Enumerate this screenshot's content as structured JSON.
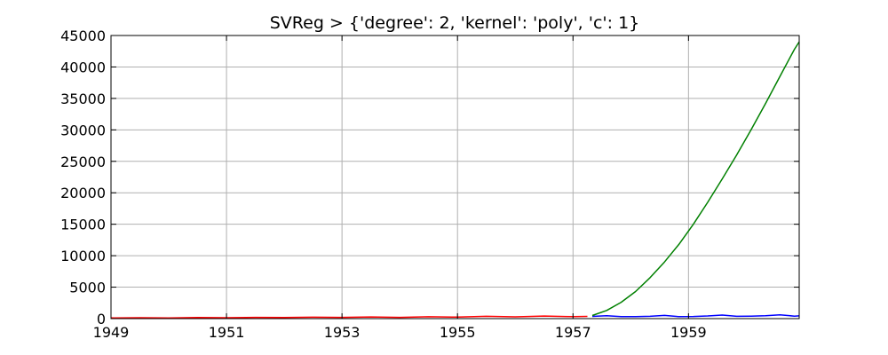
{
  "chart_data": {
    "type": "line",
    "title": "SVReg > {'degree': 2, 'kernel': 'poly', 'c': 1}",
    "xlabel": "",
    "ylabel": "",
    "xlim": [
      "1949-01",
      "1960-12"
    ],
    "ylim": [
      0,
      45000
    ],
    "grid": true,
    "x_ticks": [
      "1949",
      "1951",
      "1953",
      "1955",
      "1957",
      "1959"
    ],
    "y_ticks": [
      "0",
      "5000",
      "10000",
      "15000",
      "20000",
      "25000",
      "30000",
      "35000",
      "40000",
      "45000"
    ],
    "series": [
      {
        "color": "#ff0000",
        "x": [
          "1949-01",
          "1949-07",
          "1950-01",
          "1950-07",
          "1951-01",
          "1951-07",
          "1952-01",
          "1952-07",
          "1953-01",
          "1953-07",
          "1954-01",
          "1954-07",
          "1955-01",
          "1955-07",
          "1956-01",
          "1956-07",
          "1957-01",
          "1957-04"
        ],
        "values": [
          112,
          148,
          115,
          170,
          145,
          199,
          171,
          230,
          196,
          264,
          204,
          302,
          242,
          364,
          284,
          413,
          315,
          348
        ]
      },
      {
        "color": "#0000ff",
        "x": [
          "1957-05",
          "1957-08",
          "1957-11",
          "1958-02",
          "1958-05",
          "1958-08",
          "1958-11",
          "1959-02",
          "1959-05",
          "1959-08",
          "1959-11",
          "1960-02",
          "1960-05",
          "1960-08",
          "1960-11",
          "1960-12"
        ],
        "values": [
          355,
          467,
          305,
          318,
          363,
          505,
          310,
          342,
          420,
          559,
          362,
          391,
          472,
          606,
          390,
          432
        ]
      },
      {
        "color": "#008000",
        "x": [
          "1957-05",
          "1957-08",
          "1957-11",
          "1958-02",
          "1958-05",
          "1958-08",
          "1958-11",
          "1959-02",
          "1959-05",
          "1959-08",
          "1959-11",
          "1960-02",
          "1960-05",
          "1960-08",
          "1960-11",
          "1960-12"
        ],
        "values": [
          500,
          1300,
          2600,
          4300,
          6500,
          9000,
          11800,
          15000,
          18500,
          22200,
          26000,
          30000,
          34200,
          38500,
          42800,
          44000
        ]
      }
    ]
  }
}
